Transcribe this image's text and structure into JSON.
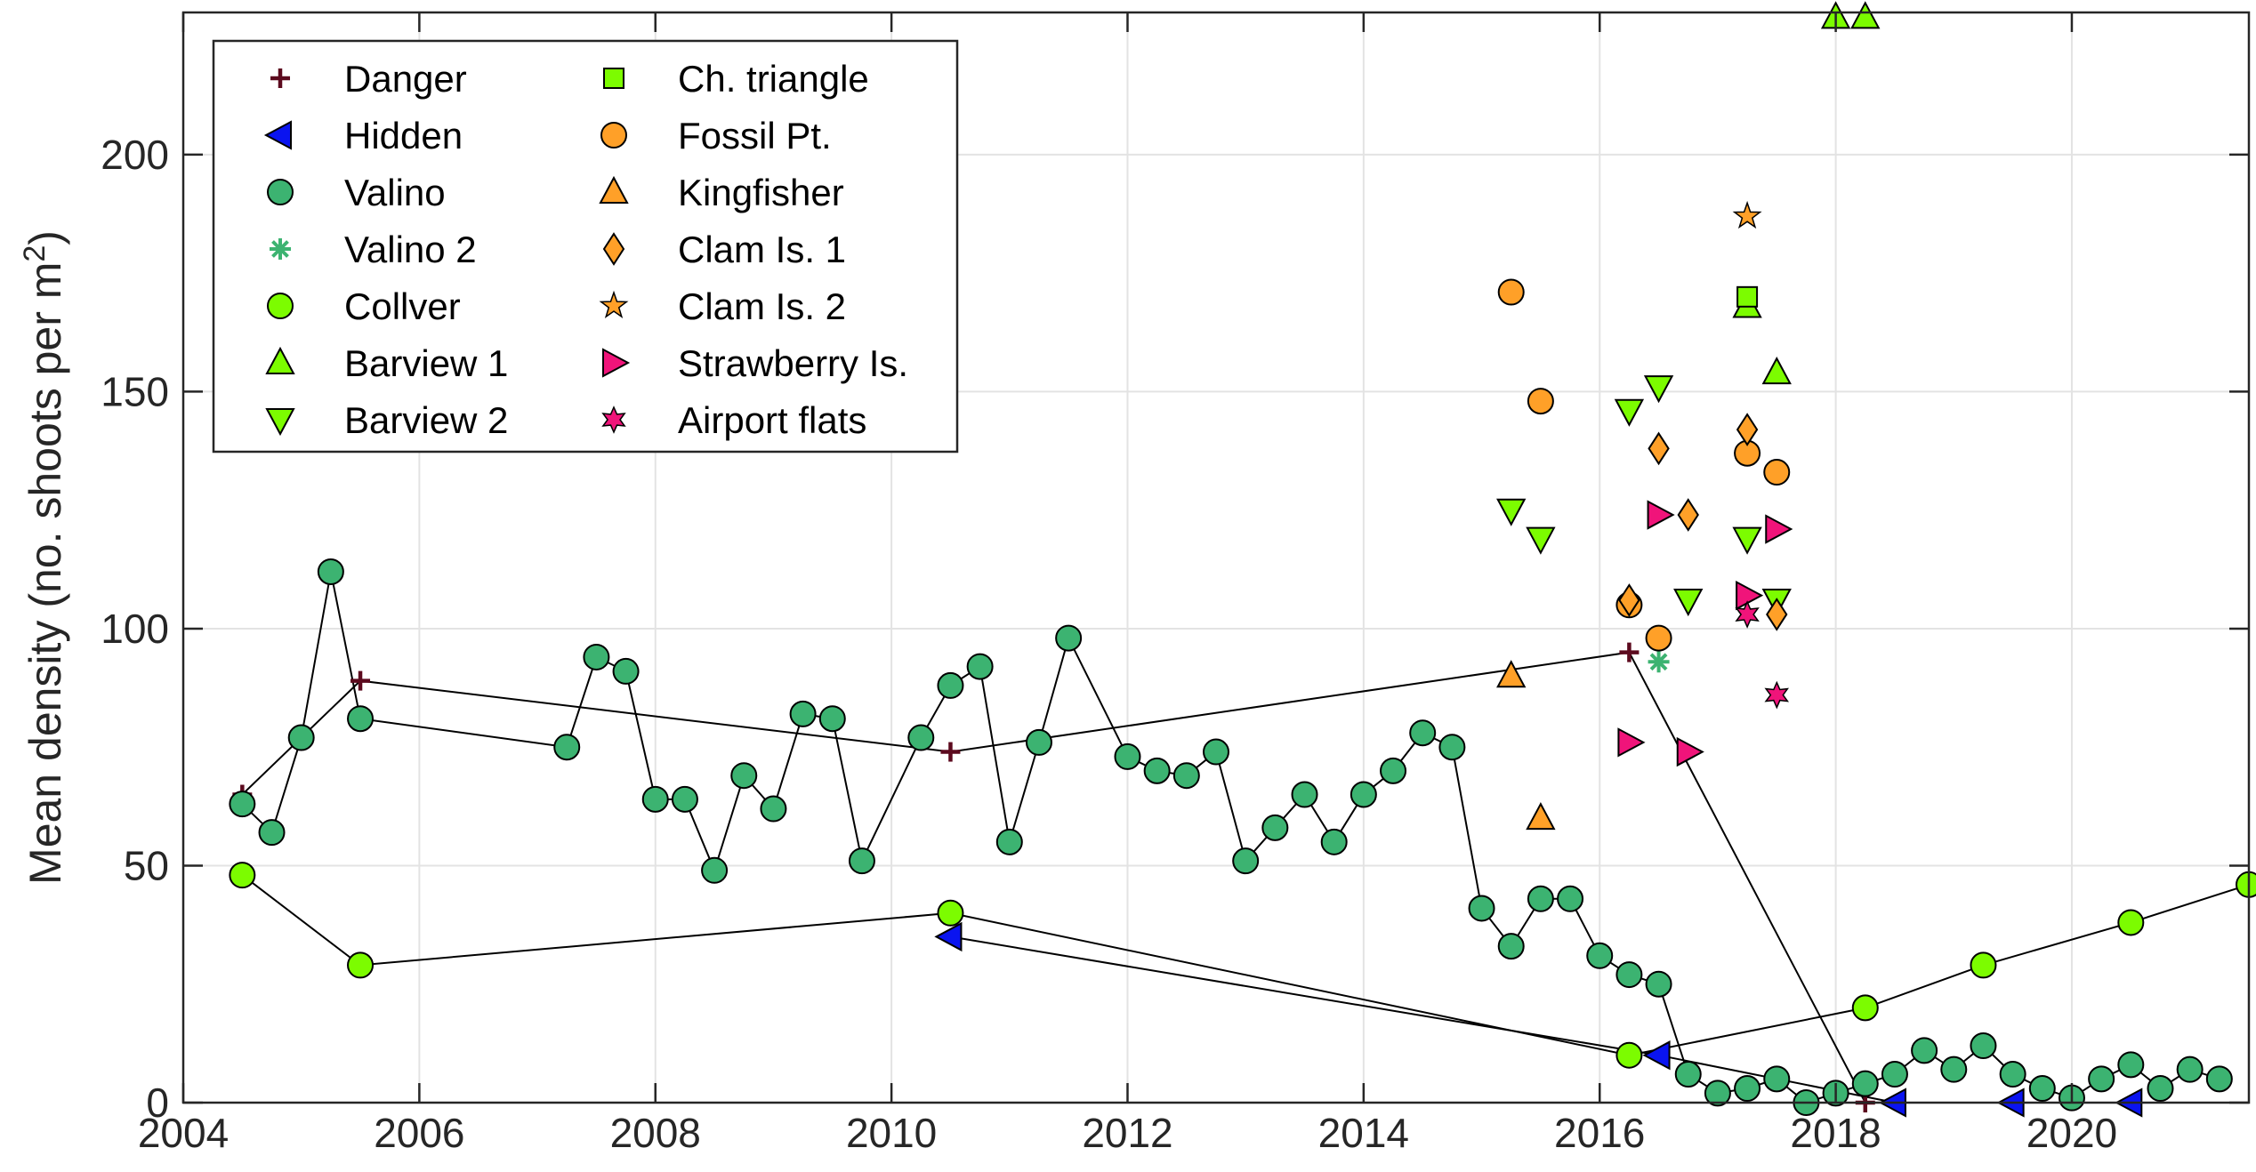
{
  "chart_data": {
    "type": "scatter",
    "title": "",
    "xlabel": "",
    "ylabel": "Mean density (no. shoots per m",
    "ylabel_superscript": "2",
    "ylabel_suffix": ")",
    "xlim": [
      2004,
      2021.5
    ],
    "ylim": [
      0,
      230
    ],
    "xticks": [
      2004,
      2006,
      2008,
      2010,
      2012,
      2014,
      2016,
      2018,
      2020
    ],
    "xtick_labels": [
      "2004",
      "2006",
      "2008",
      "2010",
      "2012",
      "2014",
      "2016",
      "2018",
      "2020"
    ],
    "yticks": [
      0,
      50,
      100,
      150,
      200
    ],
    "ytick_labels": [
      "0",
      "50",
      "100",
      "150",
      "200"
    ],
    "grid": true,
    "legend_position": "top-left",
    "series": [
      {
        "name": "Danger",
        "marker": "plus",
        "color": "#5c0a1e",
        "line": true,
        "x": [
          2004.5,
          2005.5,
          2010.5,
          2016.25,
          2018.25
        ],
        "y": [
          65,
          89,
          74,
          95,
          0
        ]
      },
      {
        "name": "Hidden",
        "marker": "triangle-left",
        "color": "#0a14f0",
        "line": true,
        "x": [
          2010.5,
          2016.5,
          2018.5,
          2019.5,
          2020.5
        ],
        "y": [
          35,
          10,
          0,
          0,
          0
        ]
      },
      {
        "name": "Valino",
        "marker": "circle",
        "color": "#3cb371",
        "line": true,
        "x": [
          2004.5,
          2004.75,
          2005.0,
          2005.25,
          2005.5,
          2007.25,
          2007.5,
          2007.75,
          2008.0,
          2008.25,
          2008.5,
          2008.75,
          2009.0,
          2009.25,
          2009.5,
          2009.75,
          2010.25,
          2010.5,
          2010.75,
          2011.0,
          2011.25,
          2011.5,
          2012.0,
          2012.25,
          2012.5,
          2012.75,
          2013.0,
          2013.25,
          2013.5,
          2013.75,
          2014.0,
          2014.25,
          2014.5,
          2014.75,
          2015.0,
          2015.25,
          2015.5,
          2015.75,
          2016.0,
          2016.25,
          2016.5,
          2016.75,
          2017.0,
          2017.25,
          2017.5,
          2017.75,
          2018.0,
          2018.25,
          2018.5,
          2018.75,
          2019.0,
          2019.25,
          2019.5,
          2019.75,
          2020.0,
          2020.25,
          2020.5,
          2020.75,
          2021.0,
          2021.25
        ],
        "y": [
          63,
          57,
          77,
          112,
          81,
          75,
          94,
          91,
          64,
          64,
          49,
          69,
          62,
          82,
          81,
          51,
          77,
          88,
          92,
          55,
          76,
          98,
          73,
          70,
          69,
          74,
          51,
          58,
          65,
          55,
          65,
          70,
          78,
          75,
          41,
          33,
          43,
          43,
          31,
          27,
          25,
          6,
          2,
          3,
          5,
          0,
          2,
          4,
          6,
          11,
          7,
          12,
          6,
          3,
          1,
          5,
          8,
          3,
          7,
          5
        ]
      },
      {
        "name": "Valino 2",
        "marker": "asterisk",
        "color": "#3cb371",
        "line": false,
        "x": [
          2016.5
        ],
        "y": [
          93
        ]
      },
      {
        "name": "Collver",
        "marker": "circle",
        "color": "#7cfc00",
        "line": true,
        "x": [
          2004.5,
          2005.5,
          2010.5,
          2016.25,
          2018.25,
          2019.25,
          2020.5,
          2021.5
        ],
        "y": [
          48,
          29,
          40,
          10,
          20,
          29,
          38,
          46
        ]
      },
      {
        "name": "Barview 1",
        "marker": "triangle-up",
        "color": "#7cfc00",
        "line": false,
        "x": [
          2017.25,
          2017.5,
          2018.0,
          2018.25
        ],
        "y": [
          168,
          154,
          229,
          229
        ]
      },
      {
        "name": "Barview 2",
        "marker": "triangle-down",
        "color": "#7cfc00",
        "line": false,
        "x": [
          2015.25,
          2015.5,
          2016.25,
          2016.5,
          2016.75,
          2017.25,
          2017.5
        ],
        "y": [
          125,
          119,
          146,
          151,
          106,
          119,
          106
        ]
      },
      {
        "name": "Ch. triangle",
        "marker": "square",
        "color": "#7cfc00",
        "line": false,
        "x": [
          2017.25
        ],
        "y": [
          170
        ]
      },
      {
        "name": "Fossil Pt.",
        "marker": "circle",
        "color": "#ffa028",
        "line": false,
        "x": [
          2015.25,
          2015.5,
          2016.25,
          2016.5,
          2017.25,
          2017.5
        ],
        "y": [
          171,
          148,
          105,
          98,
          137,
          133
        ]
      },
      {
        "name": "Kingfisher",
        "marker": "triangle-up",
        "color": "#ffa028",
        "line": false,
        "x": [
          2015.25,
          2015.5
        ],
        "y": [
          90,
          60
        ]
      },
      {
        "name": "Clam Is. 1",
        "marker": "diamond",
        "color": "#ffa028",
        "line": false,
        "x": [
          2016.25,
          2016.5,
          2016.75,
          2017.25,
          2017.5
        ],
        "y": [
          106,
          138,
          124,
          142,
          103
        ]
      },
      {
        "name": "Clam Is. 2",
        "marker": "pentagram",
        "color": "#ffa028",
        "line": false,
        "x": [
          2017.25
        ],
        "y": [
          187
        ]
      },
      {
        "name": "Strawberry Is.",
        "marker": "triangle-right",
        "color": "#f0147a",
        "line": false,
        "x": [
          2016.25,
          2016.5,
          2016.75,
          2017.25,
          2017.5
        ],
        "y": [
          76,
          124,
          74,
          107,
          121
        ]
      },
      {
        "name": "Airport flats",
        "marker": "hexagram",
        "color": "#f0147a",
        "line": false,
        "x": [
          2017.25,
          2017.5
        ],
        "y": [
          103,
          86
        ]
      }
    ]
  }
}
